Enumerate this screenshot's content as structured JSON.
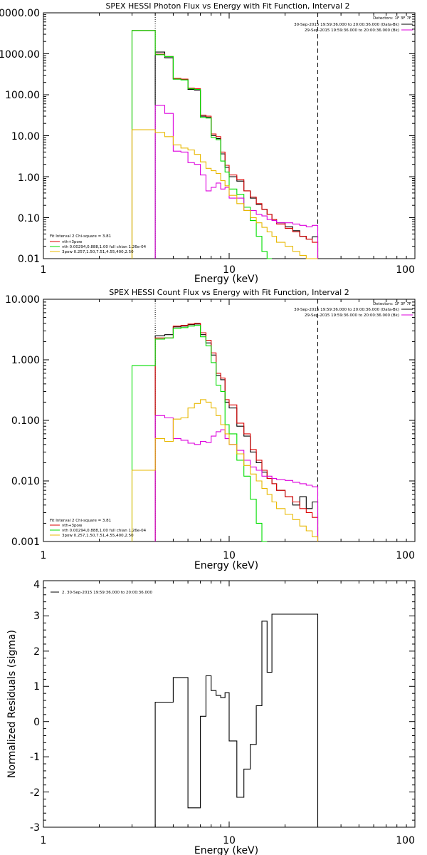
{
  "chart_data": [
    {
      "type": "line",
      "title": "SPEX HESSI Photon Flux vs Energy with Fit Function, Interval 2",
      "xlabel": "Energy (keV)",
      "ylabel": "",
      "xscale": "log",
      "yscale": "log",
      "xlim": [
        1,
        100
      ],
      "ylim": [
        0.01,
        10000
      ],
      "x_tick_labels": [
        "1",
        "10",
        "100"
      ],
      "y_tick_labels": [
        "0.01",
        "0.10",
        "1.00",
        "10.00",
        "100.00",
        "1000.00",
        "0000.00"
      ],
      "vlines": [
        {
          "x": 4,
          "style": "dotted"
        },
        {
          "x": 30,
          "style": "dashed"
        }
      ],
      "legend_top": [
        "Detectors: 1F 3F 7F",
        "30-Sep-2015 19:59:36.000 to 20:00:36.000 (Data-Bk)",
        "29-Sep-2015 19:59:36.000 to 20:00:36.000 (Bk)"
      ],
      "legend_bottom": [
        "Fit Interval 2   Chi-square = 3.81",
        "vth+3pow",
        "vth 0.00294,0.888,1.00  full chian 1.26e-04",
        "3pow 0.257,1.50,7.51,4.55,400,2.50"
      ],
      "bin_edges": [
        3,
        4,
        4.5,
        5,
        5.5,
        6,
        6.5,
        7,
        7.5,
        8,
        8.5,
        9,
        9.5,
        10,
        11,
        12,
        13,
        14,
        15,
        16,
        17,
        18,
        20,
        22,
        24,
        26,
        28,
        30
      ],
      "series": [
        {
          "name": "Data-Bk",
          "color": "#000000",
          "values": [
            null,
            1100,
            800,
            240,
            235,
            135,
            130,
            30,
            28,
            10,
            8.5,
            3.6,
            1.7,
            1.0,
            0.78,
            0.45,
            0.3,
            0.21,
            0.16,
            0.12,
            0.09,
            0.075,
            0.06,
            0.048,
            0.035,
            0.03,
            0.034
          ]
        },
        {
          "name": "vth+3pow",
          "color": "#dd0000",
          "values": [
            3700,
            980,
            860,
            250,
            240,
            145,
            140,
            32,
            30,
            11,
            9.5,
            4.0,
            1.9,
            1.1,
            0.85,
            0.45,
            0.32,
            0.22,
            0.16,
            0.12,
            0.09,
            0.07,
            0.055,
            0.045,
            0.035,
            0.03,
            0.025
          ]
        },
        {
          "name": "vth",
          "color": "#00dd00",
          "values": [
            3700,
            950,
            850,
            240,
            230,
            140,
            135,
            28,
            27,
            9,
            8,
            2.4,
            1.3,
            0.5,
            0.37,
            0.18,
            0.085,
            0.035,
            0.015,
            0.005,
            null,
            null,
            null,
            null,
            null,
            null,
            null
          ]
        },
        {
          "name": "Bk",
          "color": "#dd00dd",
          "values": [
            null,
            55,
            35,
            4.2,
            4.0,
            2.2,
            2.0,
            1.1,
            0.45,
            0.55,
            0.7,
            0.5,
            0.55,
            0.3,
            0.3,
            0.15,
            0.15,
            0.12,
            0.11,
            0.09,
            0.085,
            0.075,
            0.075,
            0.07,
            0.065,
            0.06,
            0.065
          ]
        },
        {
          "name": "3pow",
          "color": "#e8b800",
          "values": [
            14,
            12,
            9.5,
            6.0,
            5.0,
            4.5,
            3.5,
            2.3,
            1.6,
            1.4,
            1.2,
            0.8,
            0.6,
            0.35,
            0.22,
            0.15,
            0.1,
            0.075,
            0.058,
            0.045,
            0.035,
            0.025,
            0.02,
            0.015,
            0.012,
            0.009,
            0.008
          ]
        }
      ]
    },
    {
      "type": "line",
      "title": "SPEX HESSI Count Flux vs Energy with Fit Function, Interval 2",
      "xlabel": "Energy (keV)",
      "ylabel": "",
      "xscale": "log",
      "yscale": "log",
      "xlim": [
        1,
        100
      ],
      "ylim": [
        0.001,
        10
      ],
      "x_tick_labels": [
        "1",
        "10",
        "100"
      ],
      "y_tick_labels": [
        "0.001",
        "0.010",
        "0.100",
        "1.000",
        "10.000"
      ],
      "vlines": [
        {
          "x": 4,
          "style": "dotted"
        },
        {
          "x": 30,
          "style": "dashed"
        }
      ],
      "legend_top": [
        "Detectors: 1F 3F 7F",
        "30-Sep-2015 19:59:36.000 to 20:00:36.000 (Data-Bk)",
        "29-Sep-2015 19:59:36.000 to 20:00:36.000 (Bk)"
      ],
      "legend_bottom": [
        "Fit Interval 2   Chi-square = 3.81",
        "vth+3pow",
        "vth 0.00294,0.888,1.00  full chian 1.26e-04",
        "3pow 0.257,1.50,7.51,4.55,400,2.50"
      ],
      "bin_edges": [
        3,
        4,
        4.5,
        5,
        5.5,
        6,
        6.5,
        7,
        7.5,
        8,
        8.5,
        9,
        9.5,
        10,
        11,
        12,
        13,
        14,
        15,
        16,
        17,
        18,
        20,
        22,
        24,
        26,
        28,
        30
      ],
      "series": [
        {
          "name": "Data-Bk",
          "color": "#000000",
          "values": [
            null,
            2.5,
            2.6,
            3.5,
            3.6,
            3.8,
            3.9,
            2.6,
            1.9,
            1.2,
            0.55,
            0.47,
            0.2,
            0.16,
            0.08,
            0.055,
            0.03,
            0.02,
            0.014,
            0.011,
            0.009,
            0.007,
            0.0055,
            0.004,
            0.0055,
            0.0035,
            0.0045
          ]
        },
        {
          "name": "vth+3pow",
          "color": "#dd0000",
          "values": [
            null,
            2.3,
            2.3,
            3.6,
            3.7,
            3.9,
            4.0,
            2.8,
            2.1,
            1.3,
            0.6,
            0.5,
            0.22,
            0.18,
            0.09,
            0.06,
            0.033,
            0.022,
            0.015,
            0.011,
            0.009,
            0.007,
            0.0055,
            0.0045,
            0.0035,
            0.003,
            0.0025
          ]
        },
        {
          "name": "vth",
          "color": "#00dd00",
          "values": [
            0.8,
            2.2,
            2.3,
            3.3,
            3.4,
            3.6,
            3.7,
            2.4,
            1.7,
            0.9,
            0.38,
            0.3,
            0.085,
            0.06,
            0.022,
            0.012,
            0.005,
            0.002,
            0.0008,
            null,
            null,
            null,
            null,
            null,
            null,
            null,
            null
          ]
        },
        {
          "name": "Bk",
          "color": "#dd00dd",
          "values": [
            null,
            0.12,
            0.11,
            0.05,
            0.047,
            0.042,
            0.04,
            0.045,
            0.043,
            0.055,
            0.065,
            0.07,
            0.05,
            0.04,
            0.032,
            0.022,
            0.017,
            0.015,
            0.012,
            0.012,
            0.011,
            0.0105,
            0.0102,
            0.0095,
            0.009,
            0.0085,
            0.008
          ]
        },
        {
          "name": "3pow",
          "color": "#e8b800",
          "values": [
            0.015,
            0.05,
            0.045,
            0.105,
            0.11,
            0.16,
            0.19,
            0.22,
            0.2,
            0.16,
            0.12,
            0.085,
            0.06,
            0.04,
            0.028,
            0.018,
            0.013,
            0.01,
            0.0075,
            0.006,
            0.0045,
            0.0035,
            0.0028,
            0.0023,
            0.0018,
            0.0015,
            0.0012
          ]
        }
      ]
    },
    {
      "type": "line",
      "title": "",
      "xlabel": "Energy (keV)",
      "ylabel": "Normalized Residuals (sigma)",
      "xscale": "log",
      "yscale": "linear",
      "xlim": [
        1,
        100
      ],
      "ylim": [
        -3,
        4
      ],
      "x_tick_labels": [
        "1",
        "10",
        "100"
      ],
      "y_tick_labels": [
        "-3",
        "-2",
        "-1",
        "0",
        "1",
        "2",
        "3",
        "4"
      ],
      "legend_top": [
        "2. 30-Sep-2015 19:59:36.000 to 20:00:36.000"
      ],
      "bin_edges": [
        4,
        4.5,
        5,
        5.5,
        6,
        6.5,
        7,
        7.5,
        8,
        8.5,
        9,
        9.5,
        10,
        11,
        12,
        13,
        14,
        15,
        16,
        17,
        18,
        20,
        22,
        24,
        26,
        28,
        30
      ],
      "series": [
        {
          "name": "",
          "color": "#000000",
          "values": [
            0.55,
            0.55,
            1.25,
            1.25,
            -2.45,
            -2.45,
            0.15,
            1.3,
            0.88,
            0.74,
            0.68,
            0.82,
            -0.55,
            -2.15,
            -1.35,
            -0.65,
            0.45,
            2.85,
            1.4,
            3.05,
            3.05,
            3.05,
            3.05,
            3.05,
            3.05,
            3.05
          ]
        }
      ]
    }
  ]
}
